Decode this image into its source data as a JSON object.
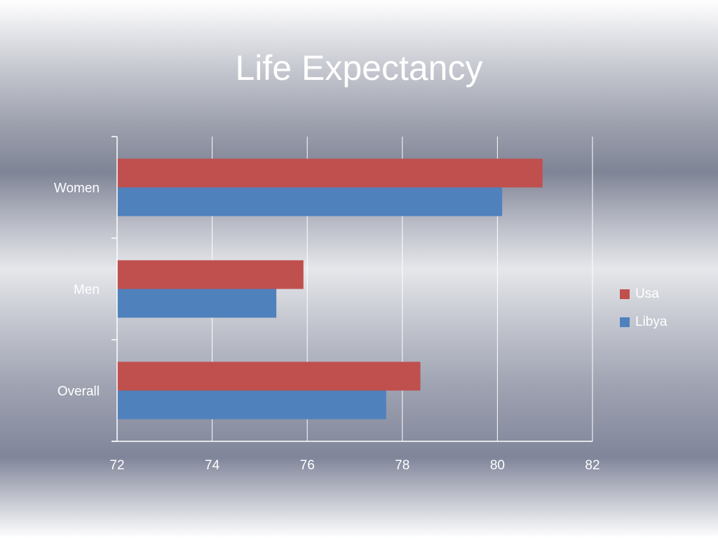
{
  "slide": {
    "title": "Life Expectancy"
  },
  "colors": {
    "Usa": "#c0504d",
    "Libya": "#4f81bd",
    "grid": "#ffffff"
  },
  "chart_data": {
    "type": "bar",
    "orientation": "horizontal",
    "title": "Life Expectancy",
    "categories": [
      "Women",
      "Men",
      "Overall"
    ],
    "series": [
      {
        "name": "Usa",
        "values": [
          80.95,
          75.92,
          78.38
        ]
      },
      {
        "name": "Libya",
        "values": [
          80.1,
          75.35,
          77.66
        ]
      }
    ],
    "xlim": [
      72,
      82
    ],
    "xticks": [
      72,
      74,
      76,
      78,
      80,
      82
    ],
    "xlabel": "",
    "ylabel": "",
    "grid": true,
    "legend": "right"
  }
}
